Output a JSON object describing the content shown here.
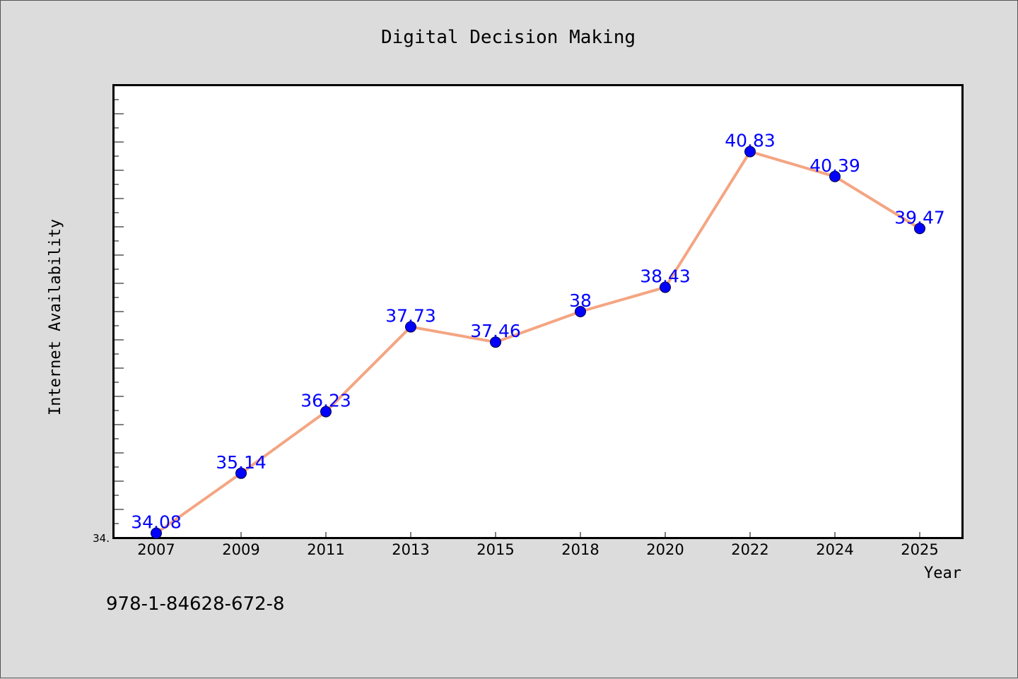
{
  "chart_data": {
    "type": "line",
    "title": "Digital Decision Making",
    "xlabel": "Year",
    "ylabel": "Internet Availability",
    "categories": [
      "2007",
      "2009",
      "2011",
      "2013",
      "2015",
      "2018",
      "2020",
      "2022",
      "2024",
      "2025"
    ],
    "series": [
      {
        "values": [
          34.08,
          35.14,
          36.23,
          37.73,
          37.46,
          38,
          38.43,
          40.83,
          40.39,
          39.47
        ],
        "labels": [
          "34.08",
          "35.14",
          "36.23",
          "37.73",
          "37.46",
          "38",
          "38.43",
          "40.83",
          "40.39",
          "39.47"
        ]
      }
    ],
    "y_tick_labels": [
      "34."
    ],
    "ylim": [
      34,
      42
    ],
    "grid": false,
    "legend": "none",
    "line_color": "#f4a582",
    "marker_color": "#0000ff",
    "label_color": "#0000ff"
  },
  "footnote": "978-1-84628-672-8"
}
